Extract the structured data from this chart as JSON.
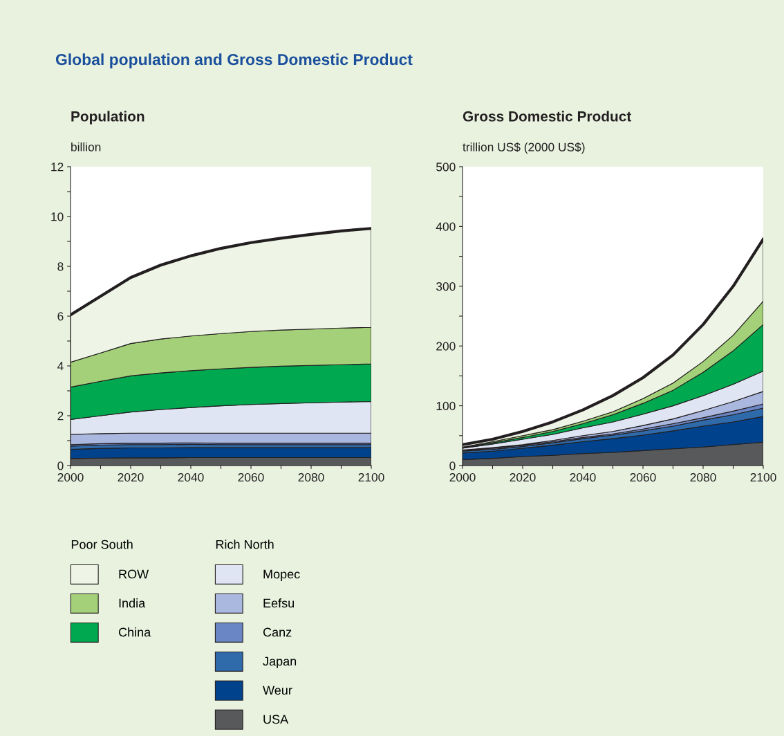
{
  "chart_data": [
    {
      "type": "area",
      "stacked": true,
      "title": "Population",
      "ylabel": "billion",
      "annotations": [
        "Global population and Gross Domestic Product"
      ],
      "legend": "bottom",
      "legend_title": [
        "Poor South",
        "Rich North"
      ],
      "grid": false,
      "x": [
        2000,
        2010,
        2020,
        2030,
        2040,
        2050,
        2060,
        2070,
        2080,
        2090,
        2100
      ],
      "xlim": [
        2000,
        2100
      ],
      "xticks": [
        2000,
        {
          "value": 2010,
          "label": null
        },
        2020,
        {
          "value": 2030,
          "label": null
        },
        2040,
        {
          "value": 2050,
          "label": null
        },
        2060,
        {
          "value": 2070,
          "label": null
        },
        2080,
        {
          "value": 2090,
          "label": null
        },
        2100
      ],
      "ylim": [
        0,
        12
      ],
      "yticks": [
        0,
        {
          "value": 1,
          "label": null
        },
        2,
        {
          "value": 3,
          "label": null
        },
        4,
        {
          "value": 5,
          "label": null
        },
        6,
        {
          "value": 7,
          "label": null
        },
        8,
        {
          "value": 9,
          "label": null
        },
        10,
        {
          "value": 11,
          "label": null
        },
        12
      ],
      "series": [
        {
          "name": "USA",
          "color": "#58595b",
          "values": [
            0.28,
            0.3,
            0.31,
            0.31,
            0.32,
            0.32,
            0.32,
            0.32,
            0.32,
            0.32,
            0.32
          ]
        },
        {
          "name": "Weur",
          "color": "#00428b",
          "values": [
            0.37,
            0.39,
            0.4,
            0.4,
            0.4,
            0.4,
            0.4,
            0.4,
            0.4,
            0.4,
            0.4
          ]
        },
        {
          "name": "Japan",
          "color": "#2f6aab",
          "values": [
            0.13,
            0.13,
            0.13,
            0.13,
            0.13,
            0.12,
            0.12,
            0.12,
            0.12,
            0.12,
            0.12
          ]
        },
        {
          "name": "Canz",
          "color": "#6b86c5",
          "values": [
            0.06,
            0.06,
            0.06,
            0.06,
            0.06,
            0.06,
            0.06,
            0.06,
            0.06,
            0.06,
            0.06
          ]
        },
        {
          "name": "Eefsu",
          "color": "#aab7df",
          "values": [
            0.41,
            0.4,
            0.4,
            0.4,
            0.39,
            0.4,
            0.4,
            0.4,
            0.4,
            0.4,
            0.4
          ]
        },
        {
          "name": "Mopec",
          "color": "#dfe5f3",
          "values": [
            0.6,
            0.72,
            0.85,
            0.95,
            1.03,
            1.1,
            1.15,
            1.19,
            1.22,
            1.25,
            1.27
          ]
        },
        {
          "name": "China",
          "color": "#00a84f",
          "values": [
            1.3,
            1.38,
            1.45,
            1.47,
            1.48,
            1.48,
            1.49,
            1.5,
            1.5,
            1.5,
            1.51
          ]
        },
        {
          "name": "India",
          "color": "#a3d078",
          "values": [
            1.0,
            1.14,
            1.3,
            1.36,
            1.39,
            1.42,
            1.44,
            1.45,
            1.46,
            1.47,
            1.47
          ]
        },
        {
          "name": "ROW",
          "color": "#eef5e6",
          "values": [
            1.9,
            2.28,
            2.65,
            2.97,
            3.22,
            3.42,
            3.57,
            3.69,
            3.8,
            3.9,
            3.97
          ]
        }
      ]
    },
    {
      "type": "area",
      "stacked": true,
      "title": "Gross Domestic Product",
      "ylabel": "trillion US$ (2000 US$)",
      "grid": false,
      "x": [
        2000,
        2010,
        2020,
        2030,
        2040,
        2050,
        2060,
        2070,
        2080,
        2090,
        2100
      ],
      "xlim": [
        2000,
        2100
      ],
      "xticks": [
        2000,
        {
          "value": 2010,
          "label": null
        },
        2020,
        {
          "value": 2030,
          "label": null
        },
        2040,
        {
          "value": 2050,
          "label": null
        },
        2060,
        {
          "value": 2070,
          "label": null
        },
        2080,
        {
          "value": 2090,
          "label": null
        },
        2100
      ],
      "ylim": [
        0,
        500
      ],
      "yticks": [
        0,
        {
          "value": 50,
          "label": null
        },
        100,
        {
          "value": 150,
          "label": null
        },
        200,
        {
          "value": 250,
          "label": null
        },
        300,
        {
          "value": 350,
          "label": null
        },
        400,
        {
          "value": 450,
          "label": null
        },
        500
      ],
      "series": [
        {
          "color": "#58595b",
          "values": [
            10,
            12,
            15,
            17,
            20,
            22,
            25,
            28,
            31,
            35,
            39
          ]
        },
        {
          "color": "#00428b",
          "values": [
            11,
            12,
            14,
            17,
            20,
            23,
            26,
            30,
            35,
            38,
            43
          ]
        },
        {
          "color": "#2f6aab",
          "values": [
            3,
            3,
            3,
            4,
            5,
            6,
            7,
            8,
            10,
            12,
            14
          ]
        },
        {
          "color": "#6b86c5",
          "values": [
            1,
            2,
            2,
            2,
            2,
            2,
            3,
            4,
            4,
            6,
            7
          ]
        },
        {
          "color": "#aab7df",
          "values": [
            1,
            1,
            1,
            2,
            3,
            4,
            6,
            8,
            12,
            16,
            21
          ]
        },
        {
          "color": "#dfe5f3",
          "values": [
            3,
            6,
            9,
            10,
            13,
            16,
            19,
            22,
            25,
            29,
            34
          ]
        },
        {
          "color": "#00a84f",
          "values": [
            1,
            2,
            3,
            5,
            7,
            12,
            18,
            26,
            39,
            56,
            78
          ]
        },
        {
          "color": "#a3d078",
          "values": [
            1,
            2,
            3,
            3,
            4,
            5,
            8,
            12,
            18,
            26,
            39
          ]
        },
        {
          "color": "#eef5e6",
          "values": [
            4,
            4,
            7,
            13,
            19,
            27,
            35,
            47,
            62,
            82,
            104
          ]
        }
      ]
    }
  ]
}
